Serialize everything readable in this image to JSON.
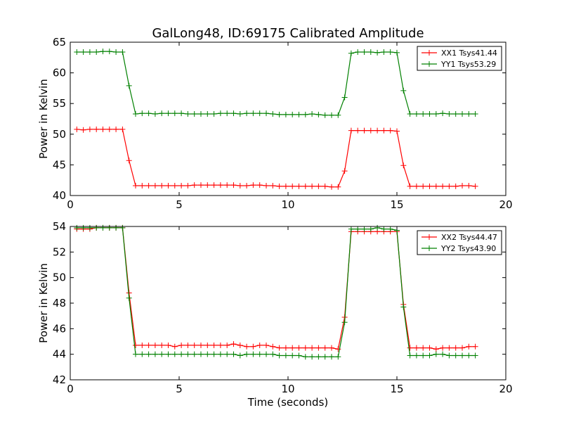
{
  "title": "GalLong48, ID:69175 Calibrated Amplitude",
  "xlabel": "Time (seconds)",
  "chart_data": [
    {
      "type": "line",
      "xlabel": "",
      "ylabel": "Power in Kelvin",
      "xlim": [
        0,
        20
      ],
      "ylim": [
        40,
        65
      ],
      "xticks": [
        0,
        5,
        10,
        15,
        20
      ],
      "yticks": [
        40,
        45,
        50,
        55,
        60,
        65
      ],
      "xtick_labels": [
        "0",
        "5",
        "10",
        "15",
        "20"
      ],
      "ytick_labels": [
        "40",
        "45",
        "50",
        "55",
        "60",
        "65"
      ],
      "grid": false,
      "legend": "top-right",
      "x": [
        0.3,
        0.6,
        0.9,
        1.2,
        1.5,
        1.8,
        2.1,
        2.4,
        2.7,
        3.0,
        3.3,
        3.6,
        3.9,
        4.2,
        4.5,
        4.8,
        5.1,
        5.4,
        5.7,
        6.0,
        6.3,
        6.6,
        6.9,
        7.2,
        7.5,
        7.8,
        8.1,
        8.4,
        8.7,
        9.0,
        9.3,
        9.6,
        9.9,
        10.2,
        10.5,
        10.8,
        11.1,
        11.4,
        11.7,
        12.0,
        12.3,
        12.6,
        12.9,
        13.2,
        13.5,
        13.8,
        14.1,
        14.4,
        14.7,
        15.0,
        15.3,
        15.6,
        15.9,
        16.2,
        16.5,
        16.8,
        17.1,
        17.4,
        17.7,
        18.0,
        18.3,
        18.6
      ],
      "series": [
        {
          "name": "XX1 Tsys41.44",
          "color": "#ff0000",
          "values": [
            50.8,
            50.7,
            50.8,
            50.8,
            50.8,
            50.8,
            50.8,
            50.8,
            45.7,
            41.6,
            41.6,
            41.6,
            41.6,
            41.6,
            41.6,
            41.6,
            41.6,
            41.6,
            41.7,
            41.7,
            41.7,
            41.7,
            41.7,
            41.7,
            41.7,
            41.6,
            41.6,
            41.7,
            41.7,
            41.6,
            41.6,
            41.5,
            41.5,
            41.5,
            41.5,
            41.5,
            41.5,
            41.5,
            41.5,
            41.4,
            41.4,
            44.0,
            50.6,
            50.6,
            50.6,
            50.6,
            50.6,
            50.6,
            50.6,
            50.5,
            44.9,
            41.5,
            41.5,
            41.5,
            41.5,
            41.5,
            41.5,
            41.5,
            41.5,
            41.6,
            41.6,
            41.5
          ]
        },
        {
          "name": "YY1 Tsys53.29",
          "color": "#008000",
          "values": [
            63.4,
            63.4,
            63.4,
            63.4,
            63.5,
            63.5,
            63.4,
            63.4,
            57.9,
            53.3,
            53.4,
            53.4,
            53.3,
            53.4,
            53.4,
            53.4,
            53.4,
            53.3,
            53.3,
            53.3,
            53.3,
            53.3,
            53.4,
            53.4,
            53.4,
            53.3,
            53.4,
            53.4,
            53.4,
            53.4,
            53.3,
            53.2,
            53.2,
            53.2,
            53.2,
            53.2,
            53.3,
            53.2,
            53.1,
            53.1,
            53.1,
            56.0,
            63.2,
            63.4,
            63.4,
            63.4,
            63.3,
            63.4,
            63.4,
            63.3,
            57.1,
            53.3,
            53.3,
            53.3,
            53.3,
            53.3,
            53.4,
            53.3,
            53.3,
            53.3,
            53.3,
            53.3
          ]
        }
      ]
    },
    {
      "type": "line",
      "xlabel": "Time (seconds)",
      "ylabel": "Power in Kelvin",
      "xlim": [
        0,
        20
      ],
      "ylim": [
        42,
        54
      ],
      "xticks": [
        0,
        5,
        10,
        15,
        20
      ],
      "yticks": [
        42,
        44,
        46,
        48,
        50,
        52,
        54
      ],
      "xtick_labels": [
        "0",
        "5",
        "10",
        "15",
        "20"
      ],
      "ytick_labels": [
        "42",
        "44",
        "46",
        "48",
        "50",
        "52",
        "54"
      ],
      "grid": false,
      "legend": "top-right",
      "x": [
        0.3,
        0.6,
        0.9,
        1.2,
        1.5,
        1.8,
        2.1,
        2.4,
        2.7,
        3.0,
        3.3,
        3.6,
        3.9,
        4.2,
        4.5,
        4.8,
        5.1,
        5.4,
        5.7,
        6.0,
        6.3,
        6.6,
        6.9,
        7.2,
        7.5,
        7.8,
        8.1,
        8.4,
        8.7,
        9.0,
        9.3,
        9.6,
        9.9,
        10.2,
        10.5,
        10.8,
        11.1,
        11.4,
        11.7,
        12.0,
        12.3,
        12.6,
        12.9,
        13.2,
        13.5,
        13.8,
        14.1,
        14.4,
        14.7,
        15.0,
        15.3,
        15.6,
        15.9,
        16.2,
        16.5,
        16.8,
        17.1,
        17.4,
        17.7,
        18.0,
        18.3,
        18.6
      ],
      "series": [
        {
          "name": "XX2 Tsys44.47",
          "color": "#ff0000",
          "values": [
            53.8,
            53.8,
            53.8,
            53.9,
            53.9,
            53.9,
            53.9,
            53.9,
            48.8,
            44.7,
            44.7,
            44.7,
            44.7,
            44.7,
            44.7,
            44.6,
            44.7,
            44.7,
            44.7,
            44.7,
            44.7,
            44.7,
            44.7,
            44.7,
            44.8,
            44.7,
            44.6,
            44.6,
            44.7,
            44.7,
            44.6,
            44.5,
            44.5,
            44.5,
            44.5,
            44.5,
            44.5,
            44.5,
            44.5,
            44.5,
            44.4,
            46.9,
            53.6,
            53.6,
            53.6,
            53.6,
            53.6,
            53.6,
            53.6,
            53.6,
            47.9,
            44.5,
            44.5,
            44.5,
            44.5,
            44.4,
            44.5,
            44.5,
            44.5,
            44.5,
            44.6,
            44.6
          ]
        },
        {
          "name": "YY2 Tsys43.90",
          "color": "#008000",
          "values": [
            53.9,
            53.9,
            53.9,
            53.9,
            53.9,
            53.9,
            53.9,
            53.9,
            48.4,
            44.0,
            44.0,
            44.0,
            44.0,
            44.0,
            44.0,
            44.0,
            44.0,
            44.0,
            44.0,
            44.0,
            44.0,
            44.0,
            44.0,
            44.0,
            44.0,
            43.9,
            44.0,
            44.0,
            44.0,
            44.0,
            44.0,
            43.9,
            43.9,
            43.9,
            43.9,
            43.8,
            43.8,
            43.8,
            43.8,
            43.8,
            43.8,
            46.5,
            53.8,
            53.8,
            53.8,
            53.8,
            53.9,
            53.8,
            53.8,
            53.7,
            47.7,
            43.9,
            43.9,
            43.9,
            43.9,
            44.0,
            44.0,
            43.9,
            43.9,
            43.9,
            43.9,
            43.9
          ]
        }
      ]
    }
  ]
}
